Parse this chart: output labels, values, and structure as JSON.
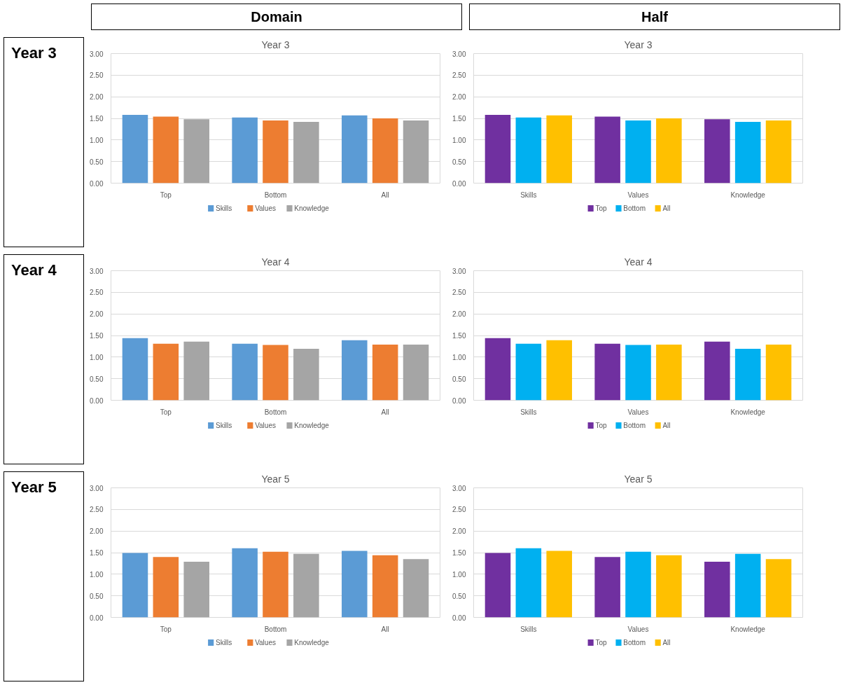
{
  "chart_data": [
    {
      "type": "bar",
      "title": "Year 3",
      "annotations": [
        "Domain",
        "Year 3"
      ],
      "categories": [
        "Top",
        "Bottom",
        "All"
      ],
      "ylim": [
        0,
        3
      ],
      "yticks": [
        {
          "value": 0,
          "label": "0.00"
        },
        {
          "value": 0.5,
          "label": "0.50"
        },
        {
          "value": 1,
          "label": "1.00"
        },
        {
          "value": 1.5,
          "label": "1.50"
        },
        {
          "value": 2,
          "label": "2.00"
        },
        {
          "value": 2.5,
          "label": "2.50"
        },
        {
          "value": 3,
          "label": "3.00"
        }
      ],
      "grid": "y",
      "legend": "bottom",
      "series": [
        {
          "name": "Skills",
          "color": "#5b9bd5",
          "values": [
            1.58,
            1.52,
            1.57
          ]
        },
        {
          "name": "Values",
          "color": "#ed7d31",
          "values": [
            1.54,
            1.45,
            1.5
          ]
        },
        {
          "name": "Knowledge",
          "color": "#a5a5a5",
          "values": [
            1.48,
            1.42,
            1.45
          ]
        }
      ]
    },
    {
      "type": "bar",
      "title": "Year 3",
      "annotations": [
        "Half"
      ],
      "categories": [
        "Skills",
        "Values",
        "Knowledge"
      ],
      "ylim": [
        0,
        3
      ],
      "yticks": [
        {
          "value": 0,
          "label": "0.00"
        },
        {
          "value": 0.5,
          "label": "0.50"
        },
        {
          "value": 1,
          "label": "1.00"
        },
        {
          "value": 1.5,
          "label": "1.50"
        },
        {
          "value": 2,
          "label": "2.00"
        },
        {
          "value": 2.5,
          "label": "2.50"
        },
        {
          "value": 3,
          "label": "3.00"
        }
      ],
      "grid": "y",
      "legend": "bottom",
      "series": [
        {
          "name": "Top",
          "color": "#7030a0",
          "values": [
            1.58,
            1.54,
            1.48
          ]
        },
        {
          "name": "Bottom",
          "color": "#00b0f0",
          "values": [
            1.52,
            1.45,
            1.42
          ]
        },
        {
          "name": "All",
          "color": "#ffc000",
          "values": [
            1.57,
            1.5,
            1.45
          ]
        }
      ]
    },
    {
      "type": "bar",
      "title": "Year 4",
      "annotations": [
        "Year 4"
      ],
      "categories": [
        "Top",
        "Bottom",
        "All"
      ],
      "ylim": [
        0,
        3
      ],
      "yticks": [
        {
          "value": 0,
          "label": "0.00"
        },
        {
          "value": 0.5,
          "label": "0.50"
        },
        {
          "value": 1,
          "label": "1.00"
        },
        {
          "value": 1.5,
          "label": "1.50"
        },
        {
          "value": 2,
          "label": "2.00"
        },
        {
          "value": 2.5,
          "label": "2.50"
        },
        {
          "value": 3,
          "label": "3.00"
        }
      ],
      "grid": "y",
      "legend": "bottom",
      "series": [
        {
          "name": "Skills",
          "color": "#5b9bd5",
          "values": [
            1.44,
            1.31,
            1.39
          ]
        },
        {
          "name": "Values",
          "color": "#ed7d31",
          "values": [
            1.31,
            1.28,
            1.29
          ]
        },
        {
          "name": "Knowledge",
          "color": "#a5a5a5",
          "values": [
            1.36,
            1.19,
            1.29
          ]
        }
      ]
    },
    {
      "type": "bar",
      "title": "Year 4",
      "categories": [
        "Skills",
        "Values",
        "Knowledge"
      ],
      "ylim": [
        0,
        3
      ],
      "yticks": [
        {
          "value": 0,
          "label": "0.00"
        },
        {
          "value": 0.5,
          "label": "0.50"
        },
        {
          "value": 1,
          "label": "1.00"
        },
        {
          "value": 1.5,
          "label": "1.50"
        },
        {
          "value": 2,
          "label": "2.00"
        },
        {
          "value": 2.5,
          "label": "2.50"
        },
        {
          "value": 3,
          "label": "3.00"
        }
      ],
      "grid": "y",
      "legend": "bottom",
      "series": [
        {
          "name": "Top",
          "color": "#7030a0",
          "values": [
            1.44,
            1.31,
            1.36
          ]
        },
        {
          "name": "Bottom",
          "color": "#00b0f0",
          "values": [
            1.31,
            1.28,
            1.19
          ]
        },
        {
          "name": "All",
          "color": "#ffc000",
          "values": [
            1.39,
            1.29,
            1.29
          ]
        }
      ]
    },
    {
      "type": "bar",
      "title": "Year 5",
      "annotations": [
        "Year 5"
      ],
      "categories": [
        "Top",
        "Bottom",
        "All"
      ],
      "ylim": [
        0,
        3
      ],
      "yticks": [
        {
          "value": 0,
          "label": "0.00"
        },
        {
          "value": 0.5,
          "label": "0.50"
        },
        {
          "value": 1,
          "label": "1.00"
        },
        {
          "value": 1.5,
          "label": "1.50"
        },
        {
          "value": 2,
          "label": "2.00"
        },
        {
          "value": 2.5,
          "label": "2.50"
        },
        {
          "value": 3,
          "label": "3.00"
        }
      ],
      "grid": "y",
      "legend": "bottom",
      "series": [
        {
          "name": "Skills",
          "color": "#5b9bd5",
          "values": [
            1.49,
            1.6,
            1.54
          ]
        },
        {
          "name": "Values",
          "color": "#ed7d31",
          "values": [
            1.4,
            1.52,
            1.44
          ]
        },
        {
          "name": "Knowledge",
          "color": "#a5a5a5",
          "values": [
            1.29,
            1.47,
            1.35
          ]
        }
      ]
    },
    {
      "type": "bar",
      "title": "Year 5",
      "categories": [
        "Skills",
        "Values",
        "Knowledge"
      ],
      "ylim": [
        0,
        3
      ],
      "yticks": [
        {
          "value": 0,
          "label": "0.00"
        },
        {
          "value": 0.5,
          "label": "0.50"
        },
        {
          "value": 1,
          "label": "1.00"
        },
        {
          "value": 1.5,
          "label": "1.50"
        },
        {
          "value": 2,
          "label": "2.00"
        },
        {
          "value": 2.5,
          "label": "2.50"
        },
        {
          "value": 3,
          "label": "3.00"
        }
      ],
      "grid": "y",
      "legend": "bottom",
      "series": [
        {
          "name": "Top",
          "color": "#7030a0",
          "values": [
            1.49,
            1.4,
            1.29
          ]
        },
        {
          "name": "Bottom",
          "color": "#00b0f0",
          "values": [
            1.6,
            1.52,
            1.47
          ]
        },
        {
          "name": "All",
          "color": "#ffc000",
          "values": [
            1.54,
            1.44,
            1.35
          ]
        }
      ]
    }
  ]
}
